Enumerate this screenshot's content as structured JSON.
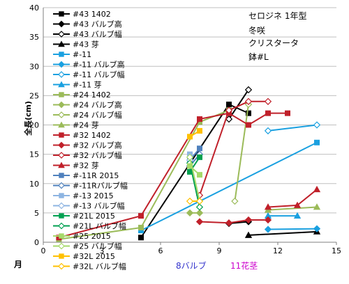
{
  "chart_data": {
    "type": "line",
    "title": "セロジネ 1年型",
    "annotations": [
      "冬咲",
      "クリスタータ",
      "鉢#L"
    ],
    "ylabel": "全長(cm)",
    "xlabel": "月",
    "xlim": [
      0,
      15
    ],
    "ylim": [
      0,
      40
    ],
    "xticks": [
      0,
      3,
      6,
      9,
      12,
      15
    ],
    "yticks": [
      0,
      5,
      10,
      15,
      20,
      25,
      30,
      35,
      40
    ],
    "grid": "horizontal",
    "legend_position": "left-inside",
    "bottom_labels": [
      {
        "text": "8バルブ",
        "color": "#3333cc"
      },
      {
        "text": "11花茎",
        "color": "#cc00cc"
      }
    ],
    "series": [
      {
        "name": "#43 1402",
        "color": "#000000",
        "marker": "square",
        "points": [
          [
            5,
            0.8
          ],
          [
            9.5,
            23.5
          ],
          [
            10.5,
            22
          ]
        ]
      },
      {
        "name": "#43 バルブ高",
        "color": "#000000",
        "marker": "diamond",
        "points": [
          [
            9.5,
            3.2
          ],
          [
            10.5,
            3.5
          ]
        ]
      },
      {
        "name": "#43 バルブ幅",
        "color": "#000000",
        "marker": "diamond-open",
        "points": [
          [
            9.5,
            21
          ],
          [
            10.5,
            26
          ]
        ]
      },
      {
        "name": "#43 芽",
        "color": "#000000",
        "marker": "triangle",
        "points": [
          [
            10.5,
            1.2
          ],
          [
            14,
            1.8
          ]
        ]
      },
      {
        "name": "#-11",
        "color": "#1aa0e0",
        "marker": "square",
        "points": [
          [
            5,
            2
          ],
          [
            14,
            17
          ]
        ]
      },
      {
        "name": "#-11 バルブ高",
        "color": "#1aa0e0",
        "marker": "diamond",
        "points": [
          [
            11.5,
            2.2
          ],
          [
            14,
            2.3
          ]
        ]
      },
      {
        "name": "#-11 バルブ幅",
        "color": "#1aa0e0",
        "marker": "diamond-open",
        "points": [
          [
            11.5,
            19
          ],
          [
            14,
            20
          ]
        ]
      },
      {
        "name": "#-11 芽",
        "color": "#1aa0e0",
        "marker": "triangle",
        "points": [
          [
            11.5,
            4.5
          ],
          [
            13,
            4.5
          ]
        ]
      },
      {
        "name": "#24 1402",
        "color": "#9bbb59",
        "marker": "square",
        "points": [
          [
            0.8,
            0.5
          ],
          [
            5,
            2.5
          ],
          [
            8,
            20.5
          ],
          [
            9.5,
            22.5
          ]
        ]
      },
      {
        "name": "#24 バルブ高",
        "color": "#9bbb59",
        "marker": "diamond",
        "points": [
          [
            7.5,
            5
          ],
          [
            8,
            5
          ]
        ]
      },
      {
        "name": "#24 バルブ幅",
        "color": "#9bbb59",
        "marker": "diamond-open",
        "points": [
          [
            9.8,
            7
          ],
          [
            10.5,
            23.5
          ]
        ]
      },
      {
        "name": "#24 芽",
        "color": "#9bbb59",
        "marker": "triangle",
        "points": [
          [
            11.5,
            5.5
          ],
          [
            14,
            6
          ]
        ]
      },
      {
        "name": "#32 1402",
        "color": "#c0202a",
        "marker": "square",
        "points": [
          [
            0.8,
            0.8
          ],
          [
            5,
            4.5
          ],
          [
            8,
            21
          ],
          [
            9.5,
            22
          ],
          [
            10.5,
            20
          ],
          [
            11.5,
            22
          ],
          [
            12.5,
            22
          ]
        ]
      },
      {
        "name": "#32 バルブ高",
        "color": "#c0202a",
        "marker": "diamond",
        "points": [
          [
            8,
            3.5
          ],
          [
            9.5,
            3.3
          ],
          [
            10.5,
            3.8
          ],
          [
            11.5,
            3.8
          ]
        ]
      },
      {
        "name": "#32 バルブ幅",
        "color": "#c0202a",
        "marker": "diamond-open",
        "points": [
          [
            8,
            8
          ],
          [
            9.5,
            22.5
          ],
          [
            10.5,
            24
          ],
          [
            11.5,
            24
          ]
        ]
      },
      {
        "name": "#32 芽",
        "color": "#c0202a",
        "marker": "triangle",
        "points": [
          [
            11.5,
            6
          ],
          [
            13,
            6.3
          ],
          [
            14,
            9
          ]
        ]
      },
      {
        "name": "#-11R 2015",
        "color": "#4f81bd",
        "marker": "square",
        "points": [
          [
            7.5,
            14
          ],
          [
            8,
            16
          ]
        ]
      },
      {
        "name": "#-11Rバルブ幅",
        "color": "#4f81bd",
        "marker": "diamond-open",
        "points": [
          [
            7.5,
            13
          ],
          [
            8,
            15
          ]
        ]
      },
      {
        "name": "#-13 2015",
        "color": "#8db4e2",
        "marker": "square",
        "points": [
          [
            7.5,
            15
          ]
        ]
      },
      {
        "name": "#-13 バルブ幅",
        "color": "#8db4e2",
        "marker": "diamond-open",
        "points": [
          [
            7.5,
            14
          ]
        ]
      },
      {
        "name": "#21L 2015",
        "color": "#00a050",
        "marker": "square",
        "points": [
          [
            7.5,
            12
          ],
          [
            8,
            14.5
          ]
        ]
      },
      {
        "name": "#21L バルブ幅",
        "color": "#00a050",
        "marker": "diamond-open",
        "points": [
          [
            7.5,
            13.5
          ],
          [
            8,
            6
          ]
        ]
      },
      {
        "name": "#25 2015",
        "color": "#a6d96a",
        "marker": "square",
        "points": [
          [
            7.5,
            13
          ],
          [
            8,
            11.5
          ]
        ]
      },
      {
        "name": "#25 バルブ幅",
        "color": "#a6d96a",
        "marker": "diamond-open",
        "points": [
          [
            7.5,
            14.5
          ],
          [
            8,
            7
          ]
        ]
      },
      {
        "name": "#32L 2015",
        "color": "#ffc000",
        "marker": "square",
        "points": [
          [
            7.5,
            18
          ],
          [
            8,
            19
          ]
        ]
      },
      {
        "name": "#32L バルブ幅",
        "color": "#ffc000",
        "marker": "diamond-open",
        "points": [
          [
            7.5,
            7
          ],
          [
            8,
            7
          ]
        ]
      }
    ]
  }
}
